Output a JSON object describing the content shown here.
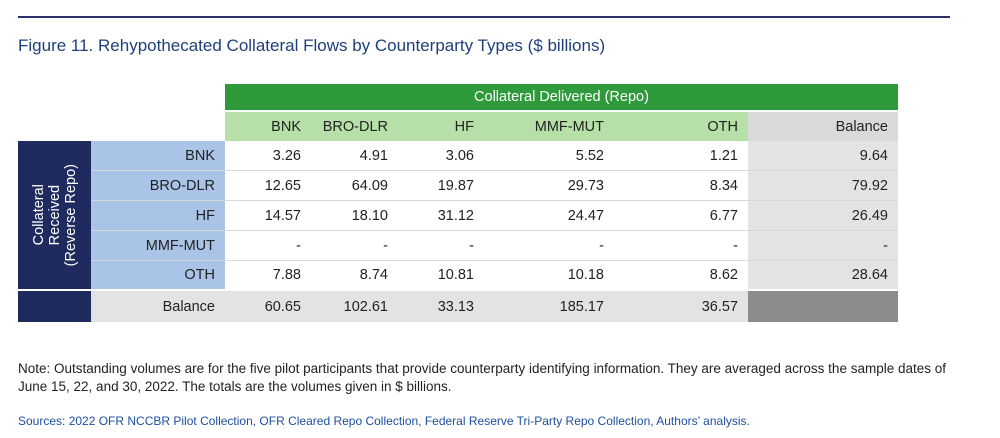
{
  "figure": {
    "title": "Figure 11. Rehypothecated Collateral Flows by Counterparty Types ($ billions)"
  },
  "table": {
    "top_header": "Collateral Delivered (Repo)",
    "side_header": [
      "Collateral",
      "Received",
      "(Reverse Repo)"
    ],
    "columns": [
      "BNK",
      "BRO-DLR",
      "HF",
      "MMF-MUT",
      "OTH",
      "Balance"
    ],
    "rows": [
      {
        "label": "BNK",
        "values": [
          "3.26",
          "4.91",
          "3.06",
          "5.52",
          "1.21"
        ],
        "balance": "9.64"
      },
      {
        "label": "BRO-DLR",
        "values": [
          "12.65",
          "64.09",
          "19.87",
          "29.73",
          "8.34"
        ],
        "balance": "79.92"
      },
      {
        "label": "HF",
        "values": [
          "14.57",
          "18.10",
          "31.12",
          "24.47",
          "6.77"
        ],
        "balance": "26.49"
      },
      {
        "label": "MMF-MUT",
        "values": [
          "-",
          "-",
          "-",
          "-",
          "-"
        ],
        "balance": "-"
      },
      {
        "label": "OTH",
        "values": [
          "7.88",
          "8.74",
          "10.81",
          "10.18",
          "8.62"
        ],
        "balance": "28.64"
      }
    ],
    "balance_row": {
      "label": "Balance",
      "values": [
        "60.65",
        "102.61",
        "33.13",
        "185.17",
        "36.57"
      ]
    }
  },
  "note": "Note: Outstanding volumes are for the five pilot participants that provide counterparty identifying information. They are averaged across the sample dates of June 15, 22, and 30, 2022. The totals are the volumes given in $ billions.",
  "sources": "Sources: 2022 OFR NCCBR Pilot Collection, OFR Cleared Repo Collection, Federal Reserve Tri-Party Repo Collection, Authors’ analysis.",
  "colors": {
    "header_green": "#2e9a3b",
    "light_green": "#b6e0a8",
    "navy": "#1f2a5e",
    "row_blue": "#a9c4e6",
    "balance_gray": "#e3e3e3",
    "title_blue": "#1f3f7a"
  }
}
